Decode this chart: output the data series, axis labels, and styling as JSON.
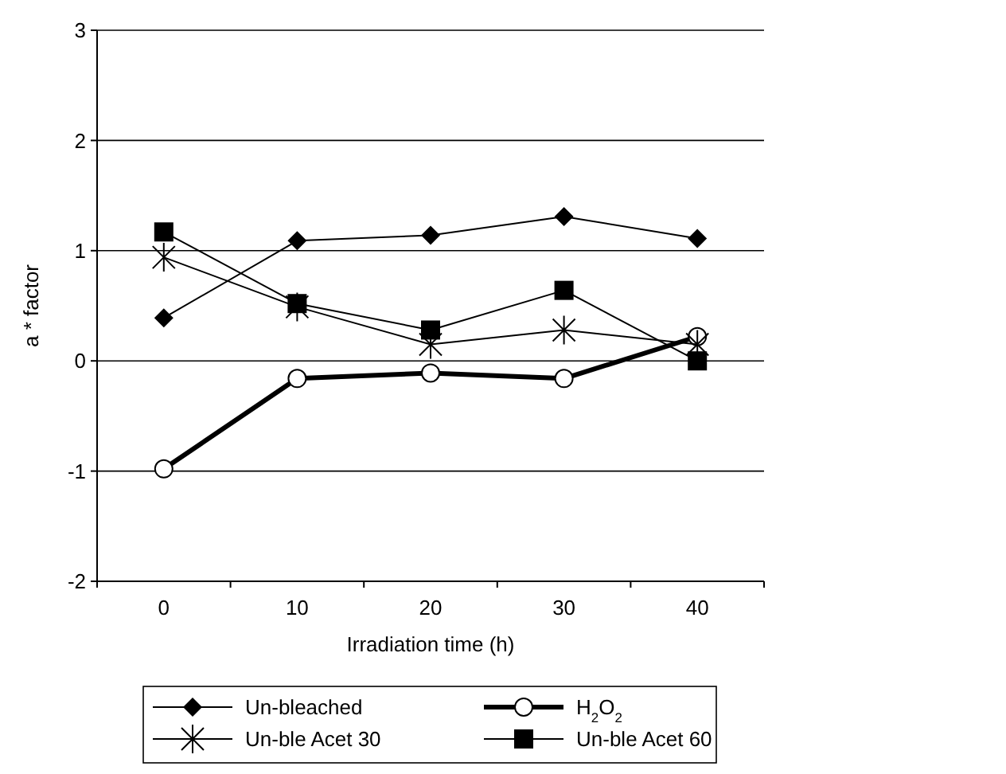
{
  "chart_data": {
    "type": "line",
    "xlabel": "Irradiation time (h)",
    "ylabel": "a * factor",
    "categories": [
      "0",
      "10",
      "20",
      "30",
      "40"
    ],
    "ylim": [
      -2,
      3
    ],
    "yticks": [
      -2,
      -1,
      0,
      1,
      2,
      3
    ],
    "grid": "y",
    "legend": "bottom",
    "line_style": "solid",
    "series": [
      {
        "name": "Un-bleached",
        "color": "#000000",
        "marker": "diamond",
        "values": [
          0.39,
          1.09,
          1.14,
          1.31,
          1.11
        ]
      },
      {
        "name": "H$_{2}$O$_{2}$",
        "color": "#000000",
        "marker": "circle",
        "values": [
          -0.98,
          -0.16,
          -0.11,
          -0.16,
          0.22
        ]
      },
      {
        "name": "Un-ble Acet 30",
        "color": "#000000",
        "marker": "cross",
        "values": [
          0.94,
          0.49,
          0.15,
          0.28,
          0.15
        ]
      },
      {
        "name": "Un-ble Acet 60",
        "color": "#000000",
        "marker": "square",
        "values": [
          1.17,
          0.52,
          0.28,
          0.64,
          0.0
        ]
      }
    ]
  }
}
